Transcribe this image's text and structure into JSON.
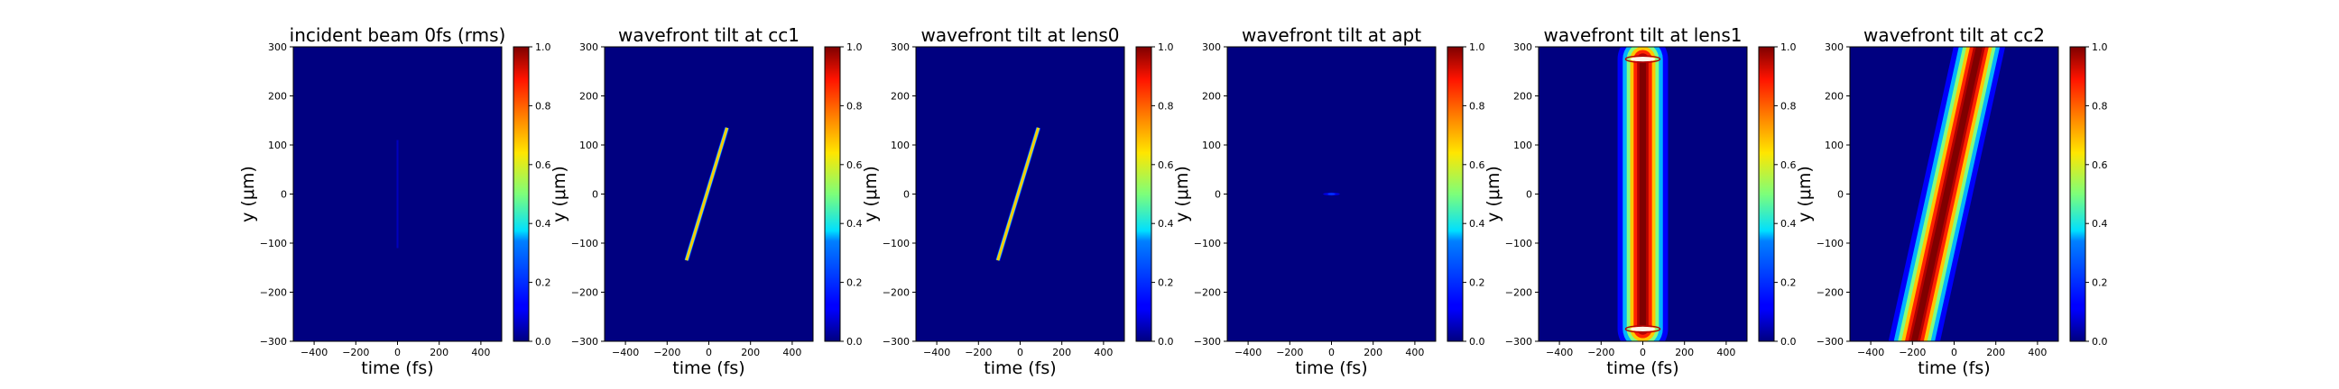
{
  "colormap": "jet",
  "chart_data": [
    {
      "type": "heatmap",
      "title": "incident beam 0fs (rms)",
      "xlabel": "time (fs)",
      "ylabel": "y (μm)",
      "xlim": [
        -500,
        500
      ],
      "ylim": [
        -300,
        300
      ],
      "xticks": [
        -400,
        -200,
        0,
        200,
        400
      ],
      "yticks": [
        -300,
        -200,
        -100,
        0,
        100,
        200,
        300
      ],
      "colorbar": {
        "min": 0.0,
        "max": 1.0,
        "ticks": [
          "0.0",
          "0.2",
          "0.4",
          "0.6",
          "0.8",
          "1.0"
        ]
      },
      "feature": {
        "kind": "faint-line",
        "t0": 0,
        "tilt_fs_per_um": 0,
        "fwhm_fs": 4,
        "y_half_extent_um": 110,
        "peak": 0.06
      }
    },
    {
      "type": "heatmap",
      "title": "wavefront tilt at cc1",
      "xlabel": "time (fs)",
      "ylabel": "y (μm)",
      "xlim": [
        -500,
        500
      ],
      "ylim": [
        -300,
        300
      ],
      "xticks": [
        -400,
        -200,
        0,
        200,
        400
      ],
      "yticks": [
        -300,
        -200,
        -100,
        0,
        100,
        200,
        300
      ],
      "colorbar": {
        "min": 0.0,
        "max": 1.0,
        "ticks": [
          "0.0",
          "0.2",
          "0.4",
          "0.6",
          "0.8",
          "1.0"
        ]
      },
      "feature": {
        "kind": "tilted-streak",
        "t0": -10,
        "tilt_fs_per_um": 0.72,
        "fwhm_fs": 10,
        "y_half_extent_um": 135,
        "peak": 0.7
      }
    },
    {
      "type": "heatmap",
      "title": "wavefront tilt at lens0",
      "xlabel": "time (fs)",
      "ylabel": "y (μm)",
      "xlim": [
        -500,
        500
      ],
      "ylim": [
        -300,
        300
      ],
      "xticks": [
        -400,
        -200,
        0,
        200,
        400
      ],
      "yticks": [
        -300,
        -200,
        -100,
        0,
        100,
        200,
        300
      ],
      "colorbar": {
        "min": 0.0,
        "max": 1.0,
        "ticks": [
          "0.0",
          "0.2",
          "0.4",
          "0.6",
          "0.8",
          "1.0"
        ]
      },
      "feature": {
        "kind": "tilted-streak",
        "t0": -10,
        "tilt_fs_per_um": 0.72,
        "fwhm_fs": 10,
        "y_half_extent_um": 135,
        "peak": 0.7
      }
    },
    {
      "type": "heatmap",
      "title": "wavefront tilt at apt",
      "xlabel": "time (fs)",
      "ylabel": "y (μm)",
      "xlim": [
        -500,
        500
      ],
      "ylim": [
        -300,
        300
      ],
      "xticks": [
        -400,
        -200,
        0,
        200,
        400
      ],
      "yticks": [
        -300,
        -200,
        -100,
        0,
        100,
        200,
        300
      ],
      "colorbar": {
        "min": 0.0,
        "max": 1.0,
        "ticks": [
          "0.0",
          "0.2",
          "0.4",
          "0.6",
          "0.8",
          "1.0"
        ]
      },
      "feature": {
        "kind": "small-spot",
        "t0": 0,
        "y0": 0,
        "t_half_fs": 40,
        "y_half_um": 3,
        "peak": 0.18
      }
    },
    {
      "type": "heatmap",
      "title": "wavefront tilt at lens1",
      "xlabel": "time (fs)",
      "ylabel": "y (μm)",
      "xlim": [
        -500,
        500
      ],
      "ylim": [
        -300,
        300
      ],
      "xticks": [
        -400,
        -200,
        0,
        200,
        400
      ],
      "yticks": [
        -300,
        -200,
        -100,
        0,
        100,
        200,
        300
      ],
      "colorbar": {
        "min": 0.0,
        "max": 1.0,
        "ticks": [
          "0.0",
          "0.2",
          "0.4",
          "0.6",
          "0.8",
          "1.0"
        ]
      },
      "feature": {
        "kind": "vertical-band",
        "t0": 0,
        "tilt_fs_per_um": 0,
        "fwhm_fs": 110,
        "y_half_extent_um": 275,
        "peak": 1.0
      }
    },
    {
      "type": "heatmap",
      "title": "wavefront tilt at cc2",
      "xlabel": "time (fs)",
      "ylabel": "y (μm)",
      "xlim": [
        -500,
        500
      ],
      "ylim": [
        -300,
        300
      ],
      "xticks": [
        -400,
        -200,
        0,
        200,
        400
      ],
      "yticks": [
        -300,
        -200,
        -100,
        0,
        100,
        200,
        300
      ],
      "colorbar": {
        "min": 0.0,
        "max": 1.0,
        "ticks": [
          "0.0",
          "0.2",
          "0.4",
          "0.6",
          "0.8",
          "1.0"
        ]
      },
      "feature": {
        "kind": "tilted-band",
        "t0": -35,
        "tilt_fs_per_um": 0.52,
        "fwhm_fs": 110,
        "y_half_extent_um": 320,
        "peak": 1.0
      }
    }
  ]
}
